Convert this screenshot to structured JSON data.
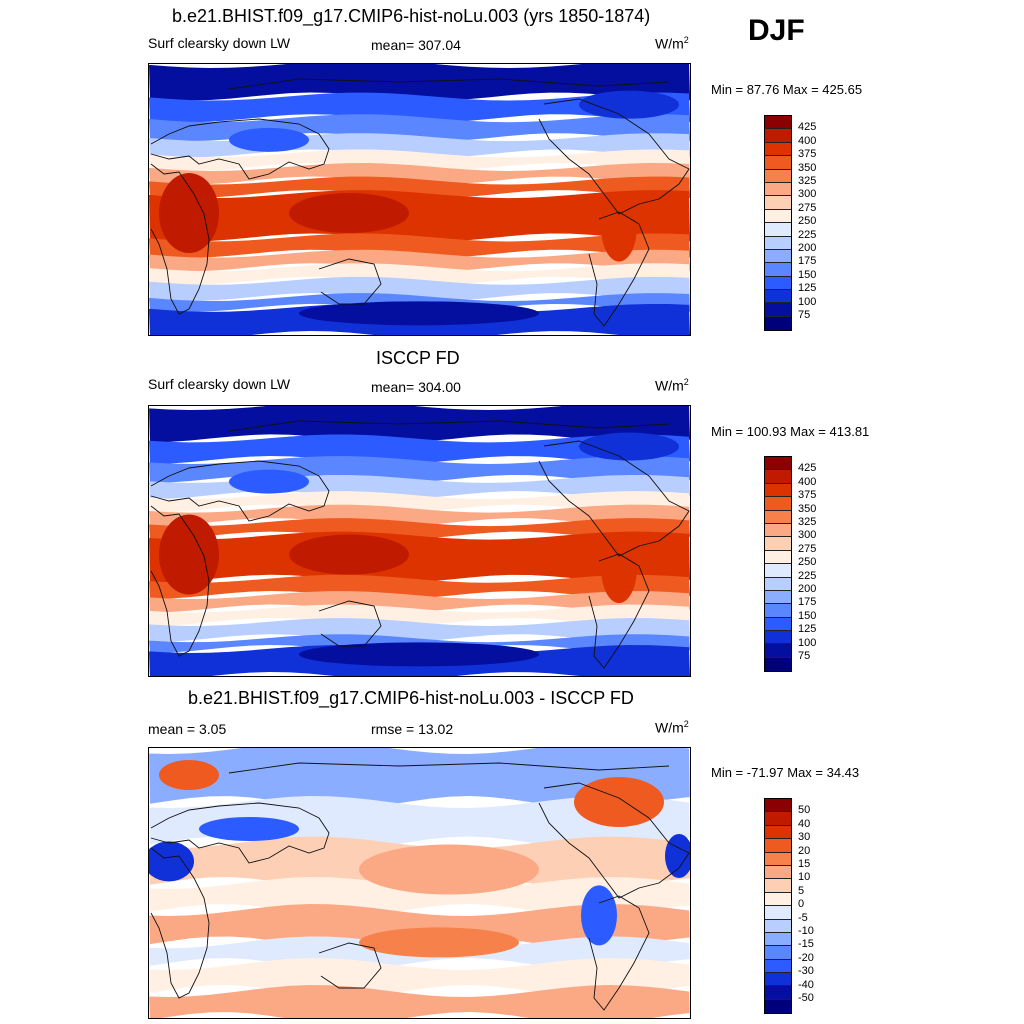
{
  "season": "DJF",
  "panels": [
    {
      "title": "b.e21.BHIST.f09_g17.CMIP6-hist-noLu.003 (yrs 1850-1874)",
      "left": "Surf clearsky down LW",
      "center": "mean= 307.04",
      "units": "W/m",
      "units_sup": "2",
      "minmax": "Min =  87.76 Max = 425.65",
      "kind": "abs",
      "field": "model"
    },
    {
      "title": "ISCCP FD",
      "left": "Surf clearsky down LW",
      "center": "mean= 304.00",
      "units": "W/m",
      "units_sup": "2",
      "minmax": "Min = 100.93 Max = 413.81",
      "kind": "abs",
      "field": "obs"
    },
    {
      "title": "b.e21.BHIST.f09_g17.CMIP6-hist-noLu.003 - ISCCP FD",
      "left": "mean =   3.05",
      "center": "rmse =  13.02",
      "units": "W/m",
      "units_sup": "2",
      "minmax": "Min = -71.97 Max =  34.43",
      "kind": "diff",
      "field": "diff"
    }
  ],
  "colorbars": {
    "abs": {
      "labels": [
        "425",
        "400",
        "375",
        "350",
        "325",
        "300",
        "275",
        "250",
        "225",
        "200",
        "175",
        "150",
        "125",
        "100",
        "75"
      ],
      "colors": [
        "#8b0000",
        "#c01a00",
        "#dd3300",
        "#ee5a1f",
        "#f7814a",
        "#fba884",
        "#fdd0b6",
        "#fff0e3",
        "#dfeaff",
        "#b7ceff",
        "#8aadff",
        "#5a86ff",
        "#2c5cff",
        "#1030d8",
        "#040fa0",
        "#00007a"
      ]
    },
    "diff": {
      "labels": [
        "50",
        "40",
        "30",
        "20",
        "15",
        "10",
        "5",
        "0",
        "-5",
        "-10",
        "-15",
        "-20",
        "-30",
        "-40",
        "-50"
      ],
      "colors": [
        "#8b0000",
        "#c01a00",
        "#dd3300",
        "#ee5a1f",
        "#f7814a",
        "#fba884",
        "#fdd0b6",
        "#fff0e3",
        "#dfeaff",
        "#b7ceff",
        "#8aadff",
        "#5a86ff",
        "#2c5cff",
        "#1030d8",
        "#040fa0",
        "#00007a"
      ]
    }
  }
}
